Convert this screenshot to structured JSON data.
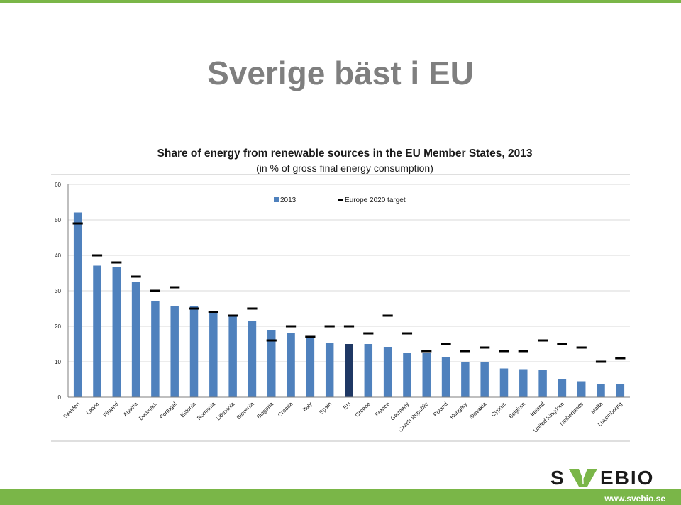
{
  "slide": {
    "title": "Sverige bäst i EU",
    "url": "www.svebio.se",
    "logo": {
      "text_left": "S",
      "text_right": "EBIO",
      "brand_color": "#7ab648"
    }
  },
  "colors": {
    "accent_green": "#7ab648",
    "bar": "#4f81bd",
    "bar_highlight": "#1f3864",
    "target_marker": "#000000",
    "title_gray": "#7f7f7f"
  },
  "chart_data": {
    "type": "bar",
    "title": "Share of energy from renewable sources in the EU Member States, 2013",
    "subtitle": "(in % of gross final energy consumption)",
    "xlabel": "",
    "ylabel": "",
    "ylim": [
      0,
      60
    ],
    "yticks": [
      0,
      10,
      20,
      30,
      40,
      50,
      60
    ],
    "grid": true,
    "legend_position": "top-center",
    "highlight_category": "EU",
    "categories": [
      "Sweden",
      "Latvia",
      "Finland",
      "Austria",
      "Denmark",
      "Portugal",
      "Estonia",
      "Romania",
      "Lithuania",
      "Slovenia",
      "Bulgaria",
      "Croatia",
      "Italy",
      "Spain",
      "EU",
      "Greece",
      "France",
      "Germany",
      "Czech Republic",
      "Poland",
      "Hungary",
      "Slovakia",
      "Cyprus",
      "Belgium",
      "Ireland",
      "United Kingdom",
      "Netherlands",
      "Malta",
      "Luxembourg"
    ],
    "series": [
      {
        "name": "2013",
        "kind": "bar",
        "values": [
          52.1,
          37.1,
          36.8,
          32.6,
          27.2,
          25.7,
          25.6,
          23.9,
          23.0,
          21.5,
          19.0,
          18.0,
          16.7,
          15.4,
          15.0,
          15.0,
          14.2,
          12.4,
          12.4,
          11.3,
          9.8,
          9.8,
          8.1,
          7.9,
          7.8,
          5.1,
          4.5,
          3.8,
          3.6
        ]
      },
      {
        "name": "Europe 2020 target",
        "kind": "marker",
        "values": [
          49,
          40,
          38,
          34,
          30,
          31,
          25,
          24,
          23,
          25,
          16,
          20,
          17,
          20,
          20,
          18,
          23,
          18,
          13,
          15,
          13,
          14,
          13,
          13,
          16,
          15,
          14,
          10,
          11
        ]
      }
    ]
  }
}
